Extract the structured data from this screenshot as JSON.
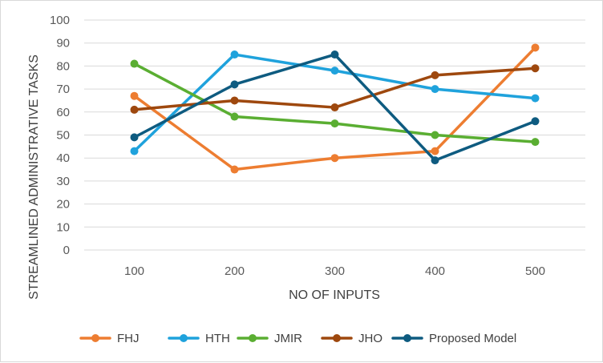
{
  "chart_data": {
    "type": "line",
    "title": "",
    "xlabel": "NO OF INPUTS",
    "ylabel": "STREAMLINED ADMINISTRATIVE TASKS",
    "categories": [
      "100",
      "200",
      "300",
      "400",
      "500"
    ],
    "ylim": [
      0,
      100
    ],
    "yticks": [
      "0",
      "10",
      "20",
      "30",
      "40",
      "50",
      "60",
      "70",
      "80",
      "90",
      "100"
    ],
    "grid": true,
    "legend_position": "bottom",
    "series": [
      {
        "name": "FHJ",
        "color": "#ED7D31",
        "values": [
          67,
          35,
          40,
          43,
          88
        ]
      },
      {
        "name": "HTH",
        "color": "#1FA2DC",
        "values": [
          43,
          85,
          78,
          70,
          66
        ]
      },
      {
        "name": "JMIR",
        "color": "#5AAE32",
        "values": [
          81,
          58,
          55,
          50,
          47
        ]
      },
      {
        "name": "JHO",
        "color": "#9E480E",
        "values": [
          61,
          65,
          62,
          76,
          79
        ]
      },
      {
        "name": "Proposed Model",
        "color": "#0E5B80",
        "values": [
          49,
          72,
          85,
          39,
          56
        ]
      }
    ]
  }
}
